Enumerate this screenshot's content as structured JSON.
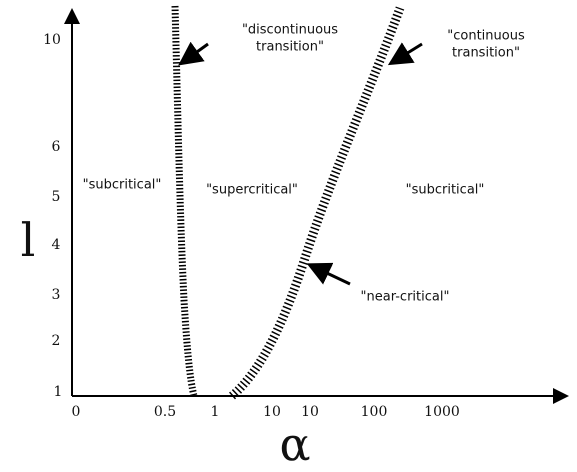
{
  "y_axis": {
    "label": "l",
    "ticks": [
      "1",
      "2",
      "3",
      "4",
      "5",
      "6",
      "10"
    ]
  },
  "x_axis": {
    "label": "α",
    "ticks": [
      "0",
      "0.5",
      "1",
      "10",
      "10",
      "100",
      "1000"
    ]
  },
  "regions": [
    "\"subcritical\"",
    "\"supercritical\"",
    "\"subcritical\""
  ],
  "annotations": [
    {
      "lines": [
        "\"discontinuous",
        "transition\""
      ]
    },
    {
      "lines": [
        "\"continuous",
        "transition\""
      ]
    },
    {
      "lines": [
        "\"near-critical\""
      ]
    }
  ]
}
